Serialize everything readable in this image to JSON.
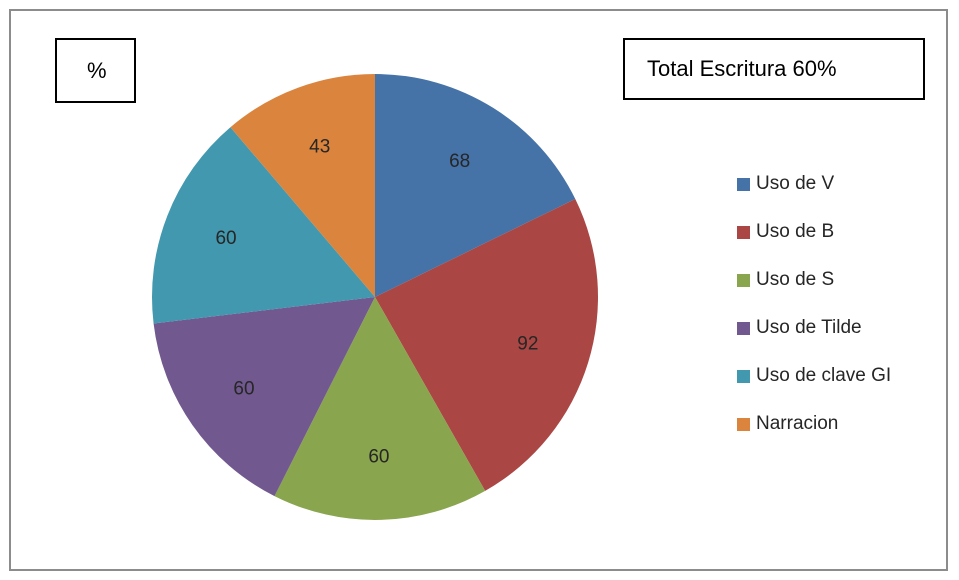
{
  "unit_label": "%",
  "total_label": "Total Escritura 60%",
  "chart_data": {
    "type": "pie",
    "categories": [
      "Uso de V",
      "Uso de B",
      "Uso de S",
      "Uso de Tilde",
      "Uso de clave GI",
      "Narracion"
    ],
    "values": [
      68,
      92,
      60,
      60,
      60,
      43
    ],
    "colors": [
      "#4572a7",
      "#aa4643",
      "#89a54e",
      "#71588f",
      "#4198af",
      "#db843d"
    ],
    "legend_position": "right"
  }
}
